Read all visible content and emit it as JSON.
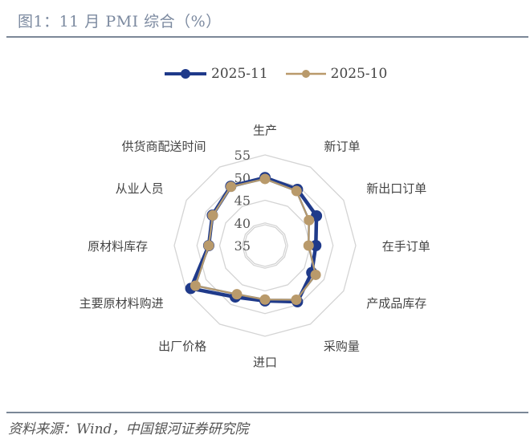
{
  "header": {
    "title": "图1：11 月 PMI 综合（%）"
  },
  "footer": {
    "source": "资料来源：Wind，中国银河证券研究院"
  },
  "colors": {
    "series_2025_11": "#1f3a8a",
    "series_2025_10": "#b99a6b",
    "grid": "#d4d4d4",
    "title": "#7c8aa0",
    "rule": "#7b8797"
  },
  "legend": {
    "items": [
      {
        "label": "2025-11",
        "color": "#1f3a8a"
      },
      {
        "label": "2025-10",
        "color": "#b99a6b"
      }
    ]
  },
  "chart_data": {
    "type": "radar",
    "title": "图1：11 月 PMI 综合（%）",
    "categories": [
      "生产",
      "新订单",
      "新出口订单",
      "在手订单",
      "产成品库存",
      "采购量",
      "进口",
      "出厂价格",
      "主要原材料购进",
      "原材料库存",
      "从业人员",
      "供货商配送时间"
    ],
    "series": [
      {
        "name": "2025-11",
        "values": [
          50.0,
          49.3,
          48.1,
          46.2,
          46.9,
          49.3,
          47.2,
          48.1,
          53.9,
          47.4,
          48.4,
          50.1
        ]
      },
      {
        "name": "2025-10",
        "values": [
          49.7,
          48.9,
          46.2,
          44.6,
          47.9,
          48.8,
          46.9,
          47.4,
          52.7,
          47.4,
          48.3,
          50.0
        ]
      }
    ],
    "rlim": [
      35,
      55
    ],
    "ticks": [
      35,
      40,
      45,
      50,
      55
    ],
    "grid": true,
    "legend_position": "top"
  }
}
